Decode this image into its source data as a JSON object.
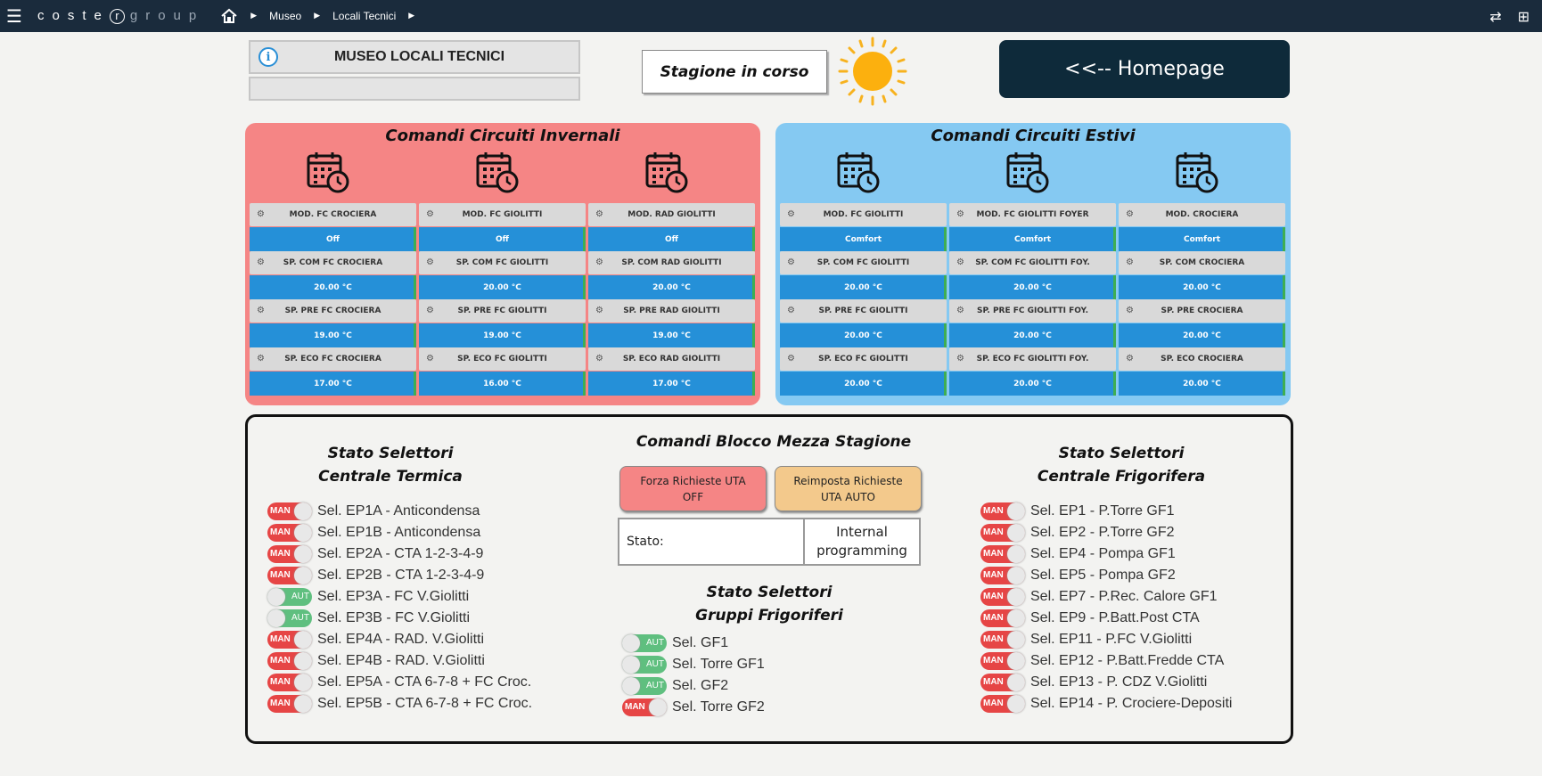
{
  "topbar": {
    "logo_pre": "coste",
    "logo_r": "r",
    "logo_post": "group",
    "breadcrumbs": [
      "Museo",
      "Locali Tecnici"
    ]
  },
  "header": {
    "title": "MUSEO LOCALI TECNICI",
    "season_label": "Stagione in corso",
    "homepage_label": "<<-- Homepage"
  },
  "winter": {
    "title": "Comandi Circuiti Invernali",
    "columns": [
      {
        "tiles": [
          {
            "label": "MOD. FC CROCIERA",
            "value": "Off"
          },
          {
            "label": "SP. COM FC CROCIERA",
            "value": "20.00 °C"
          },
          {
            "label": "SP. PRE FC CROCIERA",
            "value": "19.00 °C"
          },
          {
            "label": "SP. ECO FC CROCIERA",
            "value": "17.00 °C"
          }
        ]
      },
      {
        "tiles": [
          {
            "label": "MOD. FC GIOLITTI",
            "value": "Off"
          },
          {
            "label": "SP. COM FC GIOLITTI",
            "value": "20.00 °C"
          },
          {
            "label": "SP. PRE FC GIOLITTI",
            "value": "19.00 °C"
          },
          {
            "label": "SP. ECO FC GIOLITTI",
            "value": "16.00 °C"
          }
        ]
      },
      {
        "tiles": [
          {
            "label": "MOD. RAD GIOLITTI",
            "value": "Off"
          },
          {
            "label": "SP. COM RAD GIOLITTI",
            "value": "20.00 °C"
          },
          {
            "label": "SP. PRE RAD GIOLITTI",
            "value": "19.00 °C"
          },
          {
            "label": "SP. ECO RAD GIOLITTI",
            "value": "17.00 °C"
          }
        ]
      }
    ]
  },
  "summer": {
    "title": "Comandi Circuiti Estivi",
    "columns": [
      {
        "tiles": [
          {
            "label": "MOD. FC GIOLITTI",
            "value": "Comfort"
          },
          {
            "label": "SP. COM FC GIOLITTI",
            "value": "20.00 °C"
          },
          {
            "label": "SP. PRE FC GIOLITTI",
            "value": "20.00 °C"
          },
          {
            "label": "SP. ECO FC GIOLITTI",
            "value": "20.00 °C"
          }
        ]
      },
      {
        "tiles": [
          {
            "label": "MOD. FC GIOLITTI FOYER",
            "value": "Comfort"
          },
          {
            "label": "SP. COM FC GIOLITTI FOY.",
            "value": "20.00 °C"
          },
          {
            "label": "SP. PRE FC GIOLITTI FOY.",
            "value": "20.00 °C"
          },
          {
            "label": "SP. ECO FC GIOLITTI FOY.",
            "value": "20.00 °C"
          }
        ]
      },
      {
        "tiles": [
          {
            "label": "MOD. CROCIERA",
            "value": "Comfort"
          },
          {
            "label": "SP. COM CROCIERA",
            "value": "20.00 °C"
          },
          {
            "label": "SP. PRE CROCIERA",
            "value": "20.00 °C"
          },
          {
            "label": "SP. ECO CROCIERA",
            "value": "20.00 °C"
          }
        ]
      }
    ]
  },
  "bottom": {
    "termica_title_1": "Stato Selettori",
    "termica_title_2": "Centrale Termica",
    "termica": [
      {
        "state": "MAN",
        "label": "Sel. EP1A - Anticondensa"
      },
      {
        "state": "MAN",
        "label": "Sel. EP1B - Anticondensa"
      },
      {
        "state": "MAN",
        "label": "Sel. EP2A - CTA 1-2-3-4-9"
      },
      {
        "state": "MAN",
        "label": "Sel. EP2B - CTA 1-2-3-4-9"
      },
      {
        "state": "AUT",
        "label": "Sel. EP3A - FC V.Giolitti"
      },
      {
        "state": "AUT",
        "label": "Sel. EP3B - FC V.Giolitti"
      },
      {
        "state": "MAN",
        "label": "Sel. EP4A - RAD. V.Giolitti"
      },
      {
        "state": "MAN",
        "label": "Sel. EP4B - RAD. V.Giolitti"
      },
      {
        "state": "MAN",
        "label": "Sel. EP5A - CTA 6-7-8 + FC Croc."
      },
      {
        "state": "MAN",
        "label": "Sel. EP5B - CTA 6-7-8 + FC Croc."
      }
    ],
    "mezza_title": "Comandi Blocco Mezza Stagione",
    "forza_line1": "Forza Richieste UTA",
    "forza_line2": "OFF",
    "reimp_line1": "Reimposta Richieste",
    "reimp_line2": "UTA AUTO",
    "stato_label": "Stato:",
    "stato_value_1": "Internal",
    "stato_value_2": "programming",
    "gruppi_title_1": "Stato Selettori",
    "gruppi_title_2": "Gruppi Frigoriferi",
    "gruppi": [
      {
        "state": "AUT",
        "label": "Sel. GF1"
      },
      {
        "state": "AUT",
        "label": "Sel. Torre GF1"
      },
      {
        "state": "AUT",
        "label": "Sel. GF2"
      },
      {
        "state": "MAN",
        "label": "Sel. Torre GF2"
      }
    ],
    "frigo_title_1": "Stato Selettori",
    "frigo_title_2": "Centrale Frigorifera",
    "frigo": [
      {
        "state": "MAN",
        "label": "Sel. EP1 - P.Torre GF1"
      },
      {
        "state": "MAN",
        "label": "Sel. EP2 - P.Torre GF2"
      },
      {
        "state": "MAN",
        "label": "Sel. EP4 - Pompa GF1"
      },
      {
        "state": "MAN",
        "label": "Sel. EP5 - Pompa GF2"
      },
      {
        "state": "MAN",
        "label": "Sel. EP7 - P.Rec. Calore GF1"
      },
      {
        "state": "MAN",
        "label": "Sel. EP9 - P.Batt.Post CTA"
      },
      {
        "state": "MAN",
        "label": "Sel. EP11 - P.FC V.Giolitti"
      },
      {
        "state": "MAN",
        "label": "Sel. EP12 - P.Batt.Fredde CTA"
      },
      {
        "state": "MAN",
        "label": "Sel. EP13 - P. CDZ V.Giolitti"
      },
      {
        "state": "MAN",
        "label": "Sel. EP14 - P. Crociere-Depositi"
      }
    ]
  }
}
